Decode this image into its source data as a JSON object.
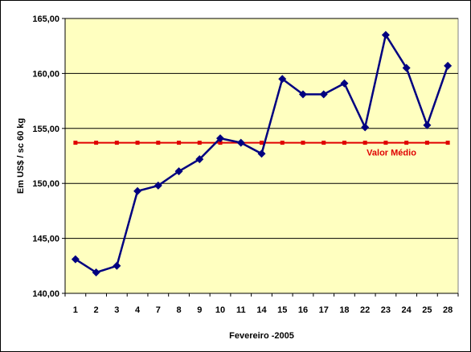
{
  "chart_data": {
    "type": "line",
    "title": "",
    "xlabel": "Fevereiro -2005",
    "ylabel": "Em US$ / sc 60 kg",
    "categories": [
      "1",
      "2",
      "3",
      "4",
      "7",
      "8",
      "9",
      "10",
      "11",
      "14",
      "15",
      "16",
      "17",
      "18",
      "22",
      "23",
      "24",
      "25",
      "28"
    ],
    "y_ticks": [
      "140,00",
      "145,00",
      "150,00",
      "155,00",
      "160,00",
      "165,00"
    ],
    "ylim": [
      140,
      165
    ],
    "grid": "horizontal",
    "series": [
      {
        "name": "",
        "color": "#000080",
        "marker": "diamond",
        "values": [
          143.1,
          141.9,
          142.5,
          149.3,
          149.8,
          151.1,
          152.2,
          154.1,
          153.7,
          152.7,
          159.5,
          158.1,
          158.1,
          159.1,
          155.1,
          163.5,
          160.5,
          155.3,
          160.7
        ]
      },
      {
        "name": "Valor Médio",
        "color": "#e00000",
        "marker": "square",
        "values": [
          153.7,
          153.7,
          153.7,
          153.7,
          153.7,
          153.7,
          153.7,
          153.7,
          153.7,
          153.7,
          153.7,
          153.7,
          153.7,
          153.7,
          153.7,
          153.7,
          153.7,
          153.7,
          153.7
        ]
      }
    ],
    "annotations": [
      {
        "text": "Valor Médio",
        "color": "#e00000"
      }
    ],
    "plot_background": "#ffffc0"
  }
}
